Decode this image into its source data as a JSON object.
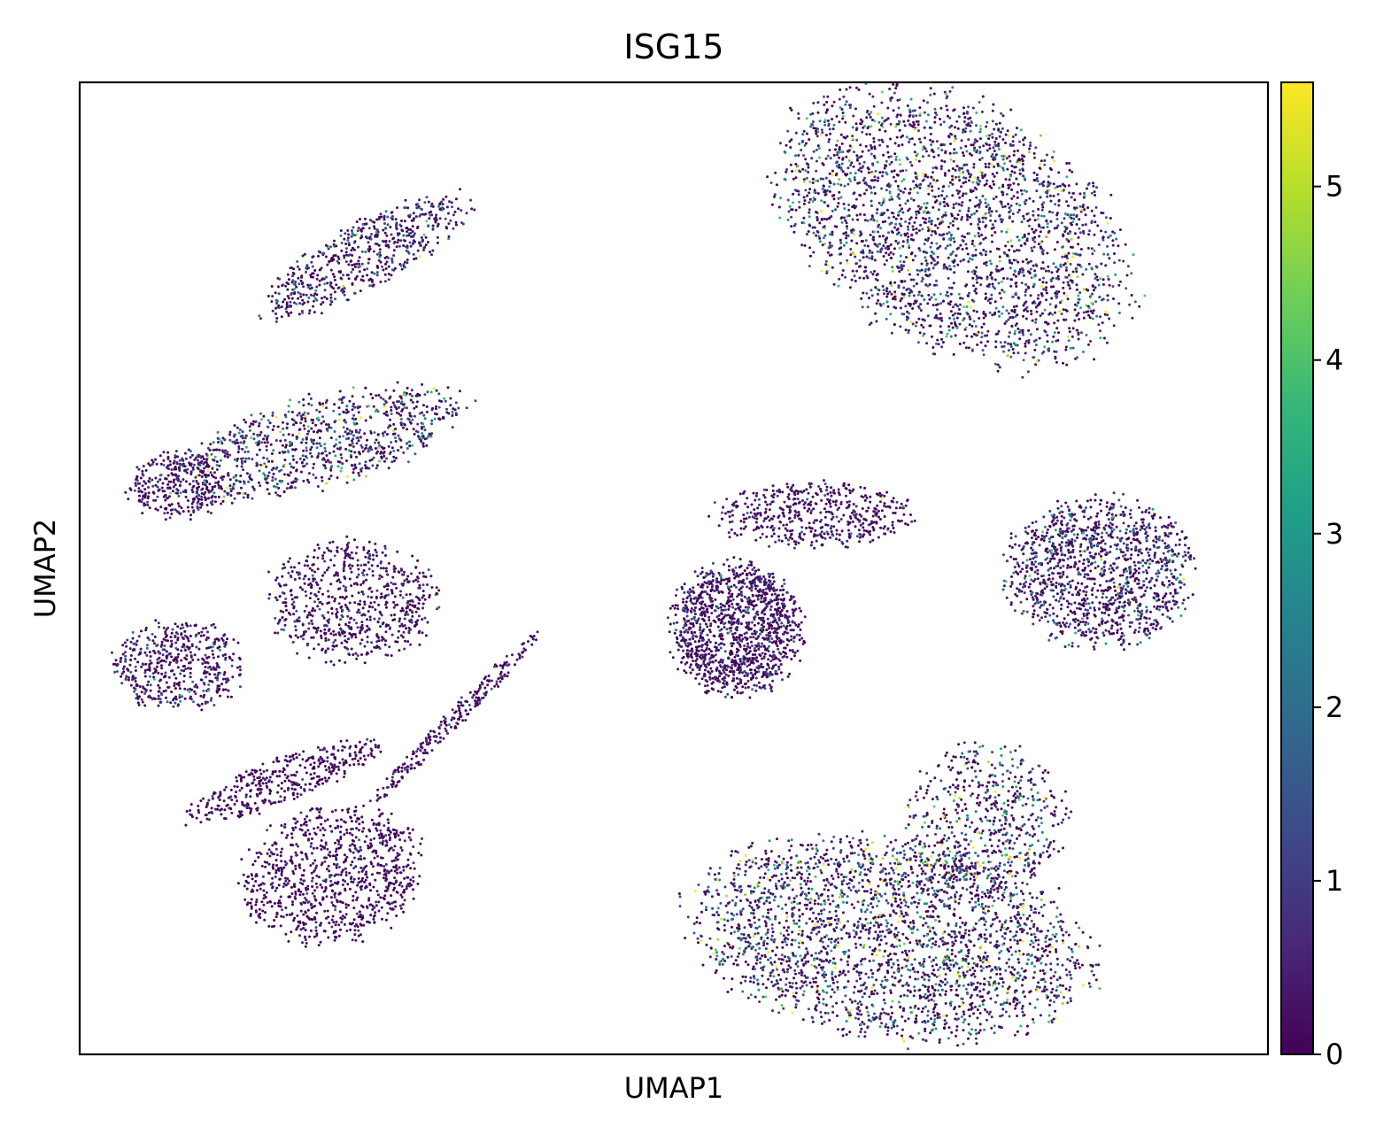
{
  "chart_data": {
    "type": "scatter",
    "title": "ISG15",
    "xlabel": "UMAP1",
    "ylabel": "UMAP2",
    "x_ticks_shown": false,
    "y_ticks_shown": false,
    "grid": false,
    "colormap": "viridis",
    "colorbar": {
      "label": "",
      "ticks": [
        0,
        1,
        2,
        3,
        4,
        5
      ],
      "range": [
        0,
        5.6
      ],
      "placement": "right"
    },
    "colorscale_stops": [
      "#440154",
      "#482878",
      "#3e4989",
      "#31688e",
      "#26828e",
      "#1f9e89",
      "#35b779",
      "#6ece58",
      "#b5de2b",
      "#fde725"
    ],
    "series": [
      {
        "clusters": [
          {
            "region": "upper-right large cluster",
            "cx": 4.5,
            "cy": 6.0,
            "rx": 2.6,
            "ry": 1.6,
            "tilt": -28,
            "n": 2600,
            "mean_expression": 1.6
          },
          {
            "region": "right cluster",
            "cx": 6.6,
            "cy": 1.2,
            "rx": 1.3,
            "ry": 1.0,
            "tilt": 0,
            "n": 1300,
            "mean_expression": 1.1
          },
          {
            "region": "center dense cluster",
            "cx": 1.4,
            "cy": 0.4,
            "rx": 0.9,
            "ry": 0.9,
            "tilt": 0,
            "n": 1300,
            "mean_expression": 0.6
          },
          {
            "region": "center bridge",
            "cx": 2.5,
            "cy": 2.0,
            "rx": 1.4,
            "ry": 0.45,
            "tilt": 0,
            "n": 500,
            "mean_expression": 0.5
          },
          {
            "region": "bottom large cluster",
            "cx": 3.6,
            "cy": -3.9,
            "rx": 2.8,
            "ry": 1.3,
            "tilt": -8,
            "n": 2600,
            "mean_expression": 1.7
          },
          {
            "region": "bottom-right lobe",
            "cx": 5.0,
            "cy": -2.2,
            "rx": 1.1,
            "ry": 1.0,
            "tilt": 0,
            "n": 600,
            "mean_expression": 1.6
          },
          {
            "region": "upper-left streak",
            "cx": -3.9,
            "cy": 5.6,
            "rx": 1.6,
            "ry": 0.45,
            "tilt": 28,
            "n": 600,
            "mean_expression": 0.9
          },
          {
            "region": "left upper arm",
            "cx": -4.6,
            "cy": 3.0,
            "rx": 2.1,
            "ry": 0.6,
            "tilt": 14,
            "n": 900,
            "mean_expression": 1.4
          },
          {
            "region": "far-left upper blob",
            "cx": -6.6,
            "cy": 2.4,
            "rx": 0.7,
            "ry": 0.45,
            "tilt": 0,
            "n": 300,
            "mean_expression": 0.6
          },
          {
            "region": "left middle cluster",
            "cx": -4.1,
            "cy": 0.8,
            "rx": 1.2,
            "ry": 0.8,
            "tilt": 0,
            "n": 700,
            "mean_expression": 0.5
          },
          {
            "region": "far-left middle cluster",
            "cx": -6.6,
            "cy": -0.1,
            "rx": 0.9,
            "ry": 0.6,
            "tilt": 0,
            "n": 500,
            "mean_expression": 0.8
          },
          {
            "region": "left lower streak",
            "cx": -5.1,
            "cy": -1.7,
            "rx": 1.4,
            "ry": 0.3,
            "tilt": 20,
            "n": 400,
            "mean_expression": 0.3
          },
          {
            "region": "lower-left cluster",
            "cx": -4.4,
            "cy": -3.0,
            "rx": 1.3,
            "ry": 0.9,
            "tilt": 12,
            "n": 900,
            "mean_expression": 0.3
          },
          {
            "region": "thin diagonal trail",
            "cx": -2.6,
            "cy": -0.8,
            "rx": 1.8,
            "ry": 0.12,
            "tilt": 45,
            "n": 250,
            "mean_expression": 0.4
          }
        ]
      }
    ],
    "xlim": [
      -8,
      9
    ],
    "ylim": [
      -5.5,
      8
    ]
  }
}
